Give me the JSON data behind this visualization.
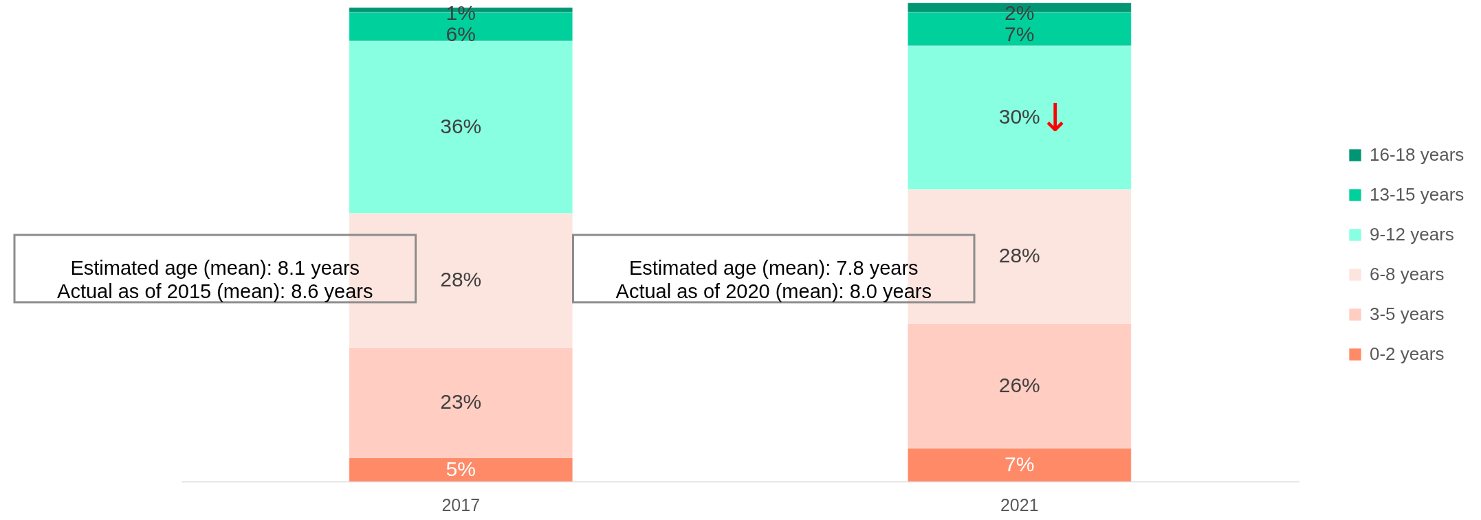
{
  "chart_data": {
    "type": "bar",
    "stacked": true,
    "categories": [
      "2017",
      "2021"
    ],
    "ylim": [
      0,
      100
    ],
    "tick_labels": "x",
    "legend": "right",
    "series": [
      {
        "name": "0-2 years",
        "color": "#ff8a68",
        "values": [
          5,
          7
        ],
        "value_labels": [
          "5%",
          "7%"
        ]
      },
      {
        "name": "3-5 years",
        "color": "#ffcdc2",
        "values": [
          23,
          26
        ],
        "value_labels": [
          "23%",
          "26%"
        ]
      },
      {
        "name": "6-8 years",
        "color": "#fde5df",
        "values": [
          28,
          28
        ],
        "value_labels": [
          "28%",
          "28%"
        ]
      },
      {
        "name": "9-12 years",
        "color": "#88ffe0",
        "values": [
          36,
          30
        ],
        "value_labels": [
          "36%",
          "30%"
        ]
      },
      {
        "name": "13-15 years",
        "color": "#00d09c",
        "values": [
          6,
          7
        ],
        "value_labels": [
          "6%",
          "7%"
        ]
      },
      {
        "name": "16-18 years",
        "color": "#009673",
        "values": [
          1,
          2
        ],
        "value_labels": [
          "1%",
          "2%"
        ]
      }
    ],
    "annotations": [
      "Estimated age (mean): 8.1 years\nActual as of 2015 (mean): 8.6 years",
      "Estimated age (mean): 7.8 years\nActual as of 2020 (mean): 8.0 years",
      "↓"
    ]
  }
}
